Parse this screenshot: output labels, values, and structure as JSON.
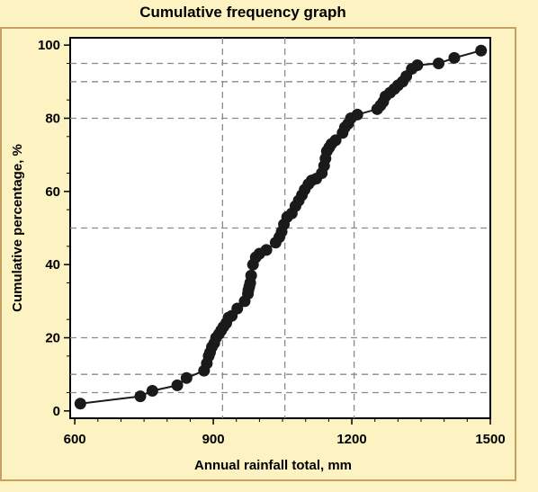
{
  "chart_data": {
    "type": "line",
    "title": "Cumulative frequency graph",
    "xlabel": "Annual rainfall total, mm",
    "ylabel": "Cumulative percentage, %",
    "xlim": [
      590,
      1500
    ],
    "ylim": [
      -2,
      102
    ],
    "xticks": [
      600,
      900,
      1200,
      1500
    ],
    "yticks": [
      0,
      20,
      40,
      60,
      80,
      100
    ],
    "ref_lines": {
      "vertical": [
        920,
        1055,
        1205
      ],
      "horizontal": [
        5,
        10,
        20,
        50,
        80,
        90,
        95
      ]
    },
    "grid_style": "dashed",
    "markers": "filled-circle",
    "colors": {
      "background": "#fdf3c2",
      "frame": "#c8a060",
      "plot_area": "#ffffff",
      "grid": "#8a8a8a",
      "series": "#1a1a1a"
    },
    "series": [
      {
        "x": [
          612,
          742,
          768,
          822,
          842,
          880,
          886,
          890,
          893,
          897,
          902,
          906,
          912,
          917,
          922,
          928,
          933,
          940,
          952,
          968,
          975,
          976,
          978,
          980,
          982,
          986,
          992,
          1000,
          1015,
          1035,
          1043,
          1048,
          1053,
          1060,
          1070,
          1078,
          1085,
          1092,
          1098,
          1106,
          1113,
          1123,
          1135,
          1140,
          1143,
          1146,
          1151,
          1156,
          1165,
          1180,
          1185,
          1192,
          1198,
          1212,
          1255,
          1262,
          1268,
          1273,
          1283,
          1292,
          1300,
          1310,
          1318,
          1330,
          1342,
          1388,
          1422,
          1480
        ],
        "y": [
          2,
          4,
          5.5,
          7,
          9,
          11,
          13,
          15,
          16,
          17.5,
          18.5,
          20,
          21,
          22,
          23,
          24,
          25.5,
          26,
          28,
          30,
          32,
          33,
          34,
          35,
          37,
          40,
          42,
          43,
          44,
          46,
          47.5,
          49,
          51,
          53,
          54,
          56,
          57.5,
          59,
          60.5,
          62,
          63,
          63.5,
          65,
          67,
          69,
          71,
          72,
          73,
          74,
          76,
          77.5,
          78.5,
          80,
          81,
          82.5,
          83.5,
          84.5,
          86,
          87,
          88,
          89,
          90,
          91.5,
          93.5,
          94.5,
          95,
          96.5,
          98.5
        ]
      }
    ]
  }
}
